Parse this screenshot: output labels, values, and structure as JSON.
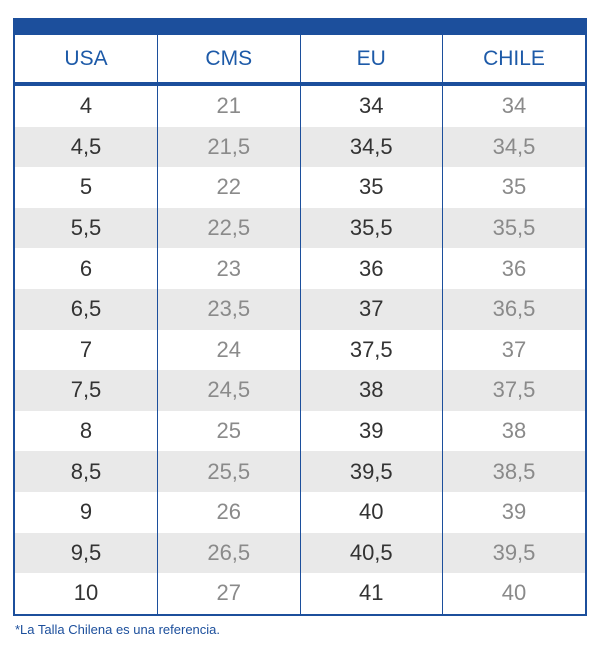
{
  "table": {
    "header": [
      "USA",
      "CMS",
      "EU",
      "CHILE"
    ],
    "rows": [
      [
        "4",
        "21",
        "34",
        "34"
      ],
      [
        "4,5",
        "21,5",
        "34,5",
        "34,5"
      ],
      [
        "5",
        "22",
        "35",
        "35"
      ],
      [
        "5,5",
        "22,5",
        "35,5",
        "35,5"
      ],
      [
        "6",
        "23",
        "36",
        "36"
      ],
      [
        "6,5",
        "23,5",
        "37",
        "36,5"
      ],
      [
        "7",
        "24",
        "37,5",
        "37"
      ],
      [
        "7,5",
        "24,5",
        "38",
        "37,5"
      ],
      [
        "8",
        "25",
        "39",
        "38"
      ],
      [
        "8,5",
        "25,5",
        "39,5",
        "38,5"
      ],
      [
        "9",
        "26",
        "40",
        "39"
      ],
      [
        "9,5",
        "26,5",
        "40,5",
        "39,5"
      ],
      [
        "10",
        "27",
        "41",
        "40"
      ]
    ]
  },
  "footnote": "*La Talla Chilena es una referencia."
}
